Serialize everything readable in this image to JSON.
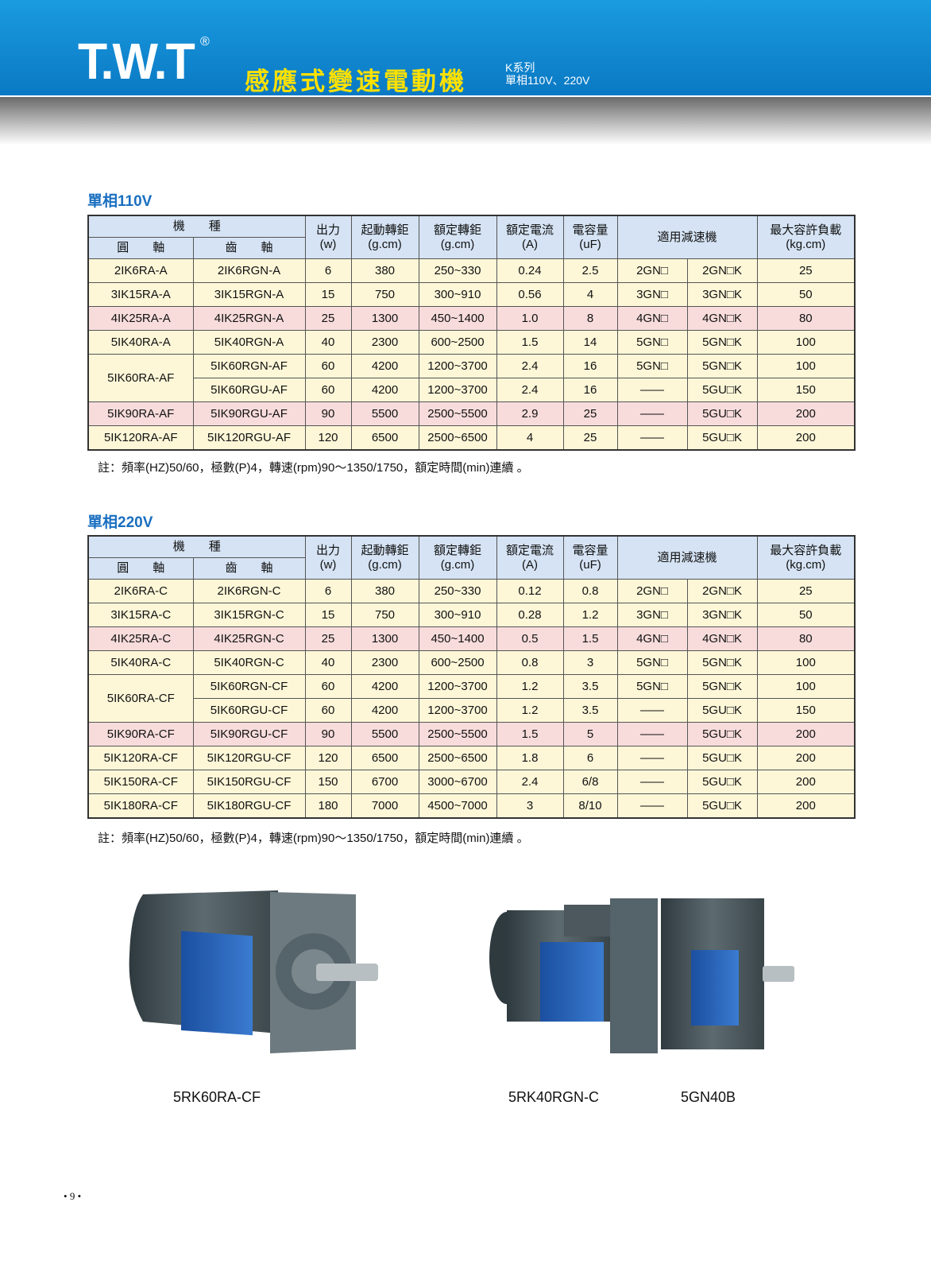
{
  "header": {
    "logo": "T.W.T",
    "registered": "®",
    "title": "感應式變速電動機",
    "series": "K系列",
    "voltage": "單相110V、220V"
  },
  "sections": [
    {
      "title": "單相110V",
      "table": {
        "head": {
          "model": "機　　種",
          "round": "圓　　軸",
          "gear": "齒　　軸",
          "columns": [
            [
              "出力",
              "(w)"
            ],
            [
              "起動轉鉅",
              "(g.cm)"
            ],
            [
              "額定轉鉅",
              "(g.cm)"
            ],
            [
              "額定電流",
              "(A)"
            ],
            [
              "電容量",
              "(uF)"
            ],
            [
              "適用減速機"
            ],
            [
              "最大容許負載",
              "(kg.cm)"
            ]
          ]
        },
        "rows": [
          [
            "2IK6RA-A",
            "2IK6RGN-A",
            "6",
            "380",
            "250~330",
            "0.24",
            "2.5",
            "2GN□",
            "2GN□K",
            "25"
          ],
          [
            "3IK15RA-A",
            "3IK15RGN-A",
            "15",
            "750",
            "300~910",
            "0.56",
            "4",
            "3GN□",
            "3GN□K",
            "50"
          ],
          [
            "4IK25RA-A",
            "4IK25RGN-A",
            "25",
            "1300",
            "450~1400",
            "1.0",
            "8",
            "4GN□",
            "4GN□K",
            "80"
          ],
          [
            "5IK40RA-A",
            "5IK40RGN-A",
            "40",
            "2300",
            "600~2500",
            "1.5",
            "14",
            "5GN□",
            "5GN□K",
            "100"
          ],
          [
            "5IK60RA-AF",
            "5IK60RGN-AF",
            "60",
            "4200",
            "1200~3700",
            "2.4",
            "16",
            "5GN□",
            "5GN□K",
            "100"
          ],
          [
            "5IK60RGU-AF",
            "60",
            "4200",
            "1200~3700",
            "2.4",
            "16",
            "——",
            "5GU□K",
            "150"
          ],
          [
            "5IK90RA-AF",
            "5IK90RGU-AF",
            "90",
            "5500",
            "2500~5500",
            "2.9",
            "25",
            "——",
            "5GU□K",
            "200"
          ],
          [
            "5IK120RA-AF",
            "5IK120RGU-AF",
            "120",
            "6500",
            "2500~6500",
            "4",
            "25",
            "——",
            "5GU□K",
            "200"
          ]
        ]
      },
      "note": "註：頻率(HZ)50/60，極數(P)4，轉速(rpm)90～1350/1750，額定時間(min)連續 。"
    },
    {
      "title": "單相220V",
      "table": {
        "head": {
          "model": "機　　種",
          "round": "圓　　軸",
          "gear": "齒　　軸",
          "columns": [
            [
              "出力",
              "(w)"
            ],
            [
              "起動轉鉅",
              "(g.cm)"
            ],
            [
              "額定轉鉅",
              "(g.cm)"
            ],
            [
              "額定電流",
              "(A)"
            ],
            [
              "電容量",
              "(uF)"
            ],
            [
              "適用減速機"
            ],
            [
              "最大容許負載",
              "(kg.cm)"
            ]
          ]
        },
        "rows": [
          [
            "2IK6RA-C",
            "2IK6RGN-C",
            "6",
            "380",
            "250~330",
            "0.12",
            "0.8",
            "2GN□",
            "2GN□K",
            "25"
          ],
          [
            "3IK15RA-C",
            "3IK15RGN-C",
            "15",
            "750",
            "300~910",
            "0.28",
            "1.2",
            "3GN□",
            "3GN□K",
            "50"
          ],
          [
            "4IK25RA-C",
            "4IK25RGN-C",
            "25",
            "1300",
            "450~1400",
            "0.5",
            "1.5",
            "4GN□",
            "4GN□K",
            "80"
          ],
          [
            "5IK40RA-C",
            "5IK40RGN-C",
            "40",
            "2300",
            "600~2500",
            "0.8",
            "3",
            "5GN□",
            "5GN□K",
            "100"
          ],
          [
            "5IK60RA-CF",
            "5IK60RGN-CF",
            "60",
            "4200",
            "1200~3700",
            "1.2",
            "3.5",
            "5GN□",
            "5GN□K",
            "100"
          ],
          [
            "5IK60RGU-CF",
            "60",
            "4200",
            "1200~3700",
            "1.2",
            "3.5",
            "——",
            "5GU□K",
            "150"
          ],
          [
            "5IK90RA-CF",
            "5IK90RGU-CF",
            "90",
            "5500",
            "2500~5500",
            "1.5",
            "5",
            "——",
            "5GU□K",
            "200"
          ],
          [
            "5IK120RA-CF",
            "5IK120RGU-CF",
            "120",
            "6500",
            "2500~6500",
            "1.8",
            "6",
            "——",
            "5GU□K",
            "200"
          ],
          [
            "5IK150RA-CF",
            "5IK150RGU-CF",
            "150",
            "6700",
            "3000~6700",
            "2.4",
            "6/8",
            "——",
            "5GU□K",
            "200"
          ],
          [
            "5IK180RA-CF",
            "5IK180RGU-CF",
            "180",
            "7000",
            "4500~7000",
            "3",
            "8/10",
            "——",
            "5GU□K",
            "200"
          ]
        ]
      },
      "note": "註：頻率(HZ)50/60，極數(P)4，轉速(rpm)90～1350/1750，額定時間(min)連續 。"
    }
  ],
  "products": [
    "5RK60RA-CF",
    "5RK40RGN-C",
    "5GN40B"
  ],
  "page_number": "9"
}
